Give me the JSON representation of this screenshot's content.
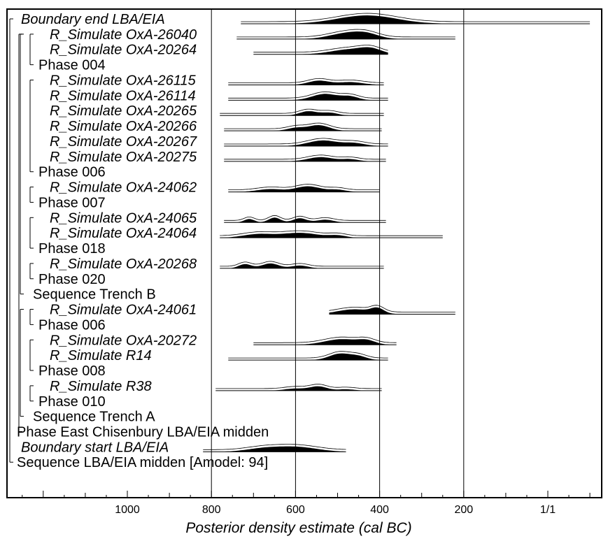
{
  "chart_data": {
    "type": "oxcal-multiplot",
    "xlabel": "Posterior density estimate (cal BC)",
    "xlim": [
      1250,
      -100
    ],
    "x_ticks": [
      {
        "value": 1000,
        "label": "1000"
      },
      {
        "value": 800,
        "label": "800"
      },
      {
        "value": 600,
        "label": "600"
      },
      {
        "value": 400,
        "label": "400"
      },
      {
        "value": 200,
        "label": "200"
      },
      {
        "value": 0,
        "label": "1/1"
      }
    ],
    "x_gridlines": [
      800,
      600,
      400,
      200
    ],
    "rows": [
      {
        "label": "Boundary end LBA/EIA",
        "italic": true,
        "indent": 0,
        "range": [
          730,
          -100
        ],
        "peaks": [
          [
            430,
            12,
            70
          ]
        ]
      },
      {
        "label": "R_Simulate OxA-26040",
        "italic": true,
        "indent": 3,
        "range": [
          740,
          220
        ],
        "peaks": [
          [
            480,
            8,
            40
          ],
          [
            430,
            6,
            30
          ]
        ]
      },
      {
        "label": "R_Simulate OxA-20264",
        "italic": true,
        "indent": 3,
        "range": [
          700,
          380
        ],
        "peaks": [
          [
            470,
            7,
            45
          ],
          [
            420,
            6,
            25
          ]
        ]
      },
      {
        "label": "Phase 004",
        "italic": false,
        "indent": 2
      },
      {
        "label": "R_Simulate OxA-26115",
        "italic": true,
        "indent": 3,
        "range": [
          760,
          390
        ],
        "peaks": [
          [
            545,
            6,
            25
          ],
          [
            470,
            4,
            30
          ]
        ]
      },
      {
        "label": "R_Simulate OxA-26114",
        "italic": true,
        "indent": 3,
        "range": [
          760,
          380
        ],
        "peaks": [
          [
            530,
            9,
            30
          ],
          [
            470,
            5,
            20
          ]
        ]
      },
      {
        "label": "R_Simulate OxA-20265",
        "italic": true,
        "indent": 3,
        "range": [
          780,
          390
        ],
        "peaks": [
          [
            570,
            6,
            20
          ],
          [
            520,
            4,
            20
          ]
        ]
      },
      {
        "label": "R_Simulate OxA-20266",
        "italic": true,
        "indent": 3,
        "range": [
          770,
          395
        ],
        "peaks": [
          [
            545,
            8,
            25
          ],
          [
            600,
            4,
            20
          ]
        ]
      },
      {
        "label": "R_Simulate OxA-20267",
        "italic": true,
        "indent": 3,
        "range": [
          770,
          380
        ],
        "peaks": [
          [
            535,
            8,
            35
          ],
          [
            460,
            4,
            25
          ]
        ]
      },
      {
        "label": "R_Simulate OxA-20275",
        "italic": true,
        "indent": 3,
        "range": [
          770,
          385
        ],
        "peaks": [
          [
            540,
            6,
            30
          ],
          [
            470,
            3,
            20
          ]
        ]
      },
      {
        "label": "Phase 006",
        "italic": false,
        "indent": 2
      },
      {
        "label": "R_Simulate OxA-24062",
        "italic": true,
        "indent": 3,
        "range": [
          760,
          400
        ],
        "peaks": [
          [
            570,
            8,
            30
          ],
          [
            660,
            4,
            30
          ],
          [
            500,
            3,
            20
          ]
        ]
      },
      {
        "label": "Phase 007",
        "italic": false,
        "indent": 2
      },
      {
        "label": "R_Simulate OxA-24065",
        "italic": true,
        "indent": 3,
        "range": [
          770,
          385
        ],
        "peaks": [
          [
            650,
            7,
            14
          ],
          [
            590,
            6,
            16
          ],
          [
            710,
            5,
            12
          ],
          [
            530,
            4,
            20
          ]
        ]
      },
      {
        "label": "R_Simulate OxA-24064",
        "italic": true,
        "indent": 3,
        "range": [
          780,
          250
        ],
        "peaks": [
          [
            590,
            7,
            45
          ],
          [
            690,
            5,
            35
          ],
          [
            500,
            3,
            20
          ]
        ]
      },
      {
        "label": "Phase 018",
        "italic": false,
        "indent": 2
      },
      {
        "label": "R_Simulate OxA-20268",
        "italic": true,
        "indent": 3,
        "range": [
          780,
          390
        ],
        "peaks": [
          [
            660,
            7,
            20
          ],
          [
            720,
            6,
            15
          ],
          [
            590,
            4,
            20
          ]
        ]
      },
      {
        "label": "Phase 020",
        "italic": false,
        "indent": 2
      },
      {
        "label": "Sequence Trench B",
        "italic": false,
        "indent": 1
      },
      {
        "label": "R_Simulate OxA-24061",
        "italic": true,
        "indent": 3,
        "range": [
          520,
          220
        ],
        "peaks": [
          [
            460,
            7,
            40
          ],
          [
            405,
            7,
            15
          ]
        ]
      },
      {
        "label": "Phase 006",
        "italic": false,
        "indent": 2
      },
      {
        "label": "R_Simulate OxA-20272",
        "italic": true,
        "indent": 3,
        "range": [
          700,
          360
        ],
        "peaks": [
          [
            490,
            8,
            40
          ],
          [
            430,
            5,
            20
          ]
        ]
      },
      {
        "label": "R_Simulate R14",
        "italic": true,
        "indent": 3,
        "range": [
          760,
          380
        ],
        "peaks": [
          [
            495,
            9,
            25
          ],
          [
            450,
            5,
            20
          ]
        ]
      },
      {
        "label": "Phase 008",
        "italic": false,
        "indent": 2
      },
      {
        "label": "R_Simulate R38",
        "italic": true,
        "indent": 3,
        "range": [
          790,
          395
        ],
        "peaks": [
          [
            545,
            6,
            20
          ],
          [
            600,
            3,
            25
          ],
          [
            480,
            2,
            20
          ]
        ]
      },
      {
        "label": "Phase 010",
        "italic": false,
        "indent": 2
      },
      {
        "label": "Sequence Trench A",
        "italic": false,
        "indent": 1
      },
      {
        "label": "Phase East Chisenbury LBA/EIA midden",
        "italic": false,
        "indent": 0
      },
      {
        "label": "Boundary start LBA/EIA",
        "italic": true,
        "indent": 0,
        "range": [
          820,
          480
        ],
        "peaks": [
          [
            600,
            7,
            50
          ],
          [
            680,
            4,
            40
          ]
        ]
      },
      {
        "label": "Sequence LBA/EIA midden [Amodel: 94]",
        "italic": false,
        "indent": 0
      }
    ]
  }
}
